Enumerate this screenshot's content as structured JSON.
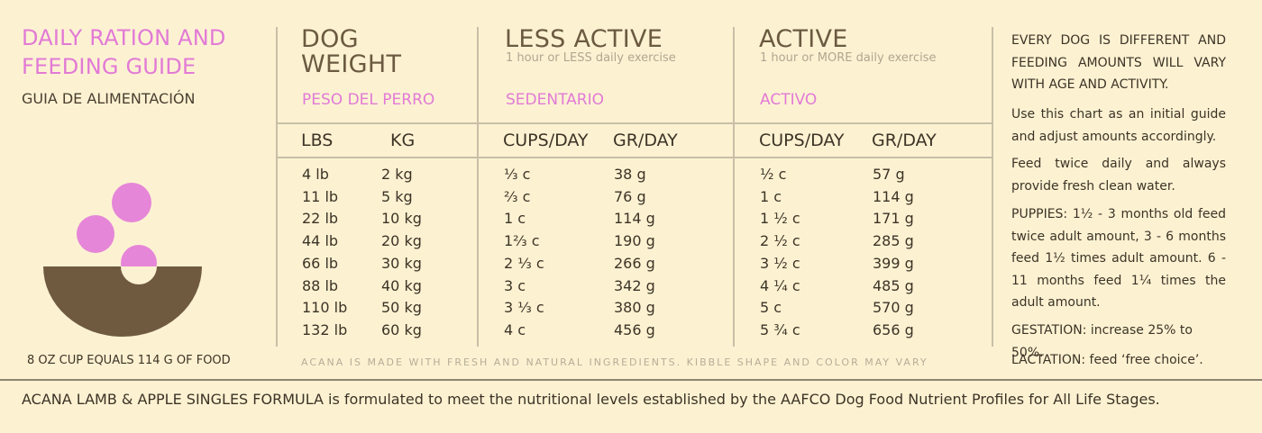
{
  "title": "DAILY RATION AND FEEDING GUIDE",
  "subtitle": "GUIA DE ALIMENTACIÓN",
  "cup_note": "8 OZ CUP EQUALS 114 G OF FOOD",
  "colors": {
    "pink": "#e27ad6",
    "brown": "#6b5a40",
    "background": "#fcf2d2"
  },
  "icons": {
    "bowl": "bowl-with-kibble-icon"
  },
  "columns": {
    "weight": {
      "heading": "DOG WEIGHT",
      "spanish": "PESO DEL PERRO",
      "unit_lbs": "LBS",
      "unit_kg": "KG"
    },
    "less_active": {
      "heading": "LESS ACTIVE",
      "sub": "1 hour or LESS daily exercise",
      "spanish": "SEDENTARIO",
      "unit_cups": "CUPS/DAY",
      "unit_gr": "GR/DAY"
    },
    "active": {
      "heading": "ACTIVE",
      "sub": "1 hour or MORE daily exercise",
      "spanish": "ACTIVO",
      "unit_cups": "CUPS/DAY",
      "unit_gr": "GR/DAY"
    }
  },
  "rows": {
    "lbs": "4 lb\n11 lb\n22 lb\n44 lb\n66 lb\n88 lb\n110 lb\n132 lb",
    "kg": "2 kg\n5 kg\n10 kg\n20 kg\n30 kg\n40 kg\n50 kg\n60 kg",
    "less_cups": "⅓ c\n⅔ c\n1 c\n1⅔ c\n2 ⅓ c\n3 c\n3 ⅓ c\n4 c",
    "less_gr": "38 g\n76 g\n114 g\n190 g\n266 g\n342 g\n380 g\n456 g",
    "active_cups": "½ c\n1 c\n1 ½ c\n2 ½ c\n3 ½ c\n4 ¼ c\n5 c\n5 ¾ c",
    "active_gr": "57 g\n114 g\n171 g\n285 g\n399 g\n485 g\n570 g\n656 g"
  },
  "footnote": "ACANA IS MADE WITH FRESH AND NATURAL INGREDIENTS. KIBBLE SHAPE AND COLOR MAY VARY",
  "right_panel": {
    "intro": "EVERY DOG IS DIFFERENT AND FEEDING AMOUNTS WILL VARY WITH AGE AND ACTIVITY.",
    "guide": "Use this chart as an initial guide and adjust amounts accordingly.",
    "feed": "Feed twice daily and always provide fresh clean water.",
    "puppies": "PUPPIES: 1½ - 3 months old feed twice adult amount, 3 - 6 months feed 1½ times adult amount. 6 - 11 months feed 1¼ times the adult amount.",
    "gestation": "GESTATION: increase 25% to 50%.",
    "lactation": "LACTATION: feed ‘free choice’."
  },
  "bottom_line": "ACANA LAMB & APPLE SINGLES FORMULA is formulated to meet the nutritional levels established by the AAFCO Dog Food Nutrient Profiles for All Life Stages."
}
